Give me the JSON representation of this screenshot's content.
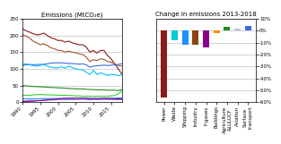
{
  "chart_data": [
    {
      "type": "line",
      "title": "Emissions (MtCO₂e)",
      "x": [
        1990,
        1991,
        1992,
        1993,
        1994,
        1995,
        1996,
        1997,
        1998,
        1999,
        2000,
        2001,
        2002,
        2003,
        2004,
        2005,
        2006,
        2007,
        2008,
        2009,
        2010,
        2011,
        2012,
        2013,
        2014,
        2015,
        2016,
        2017,
        2018
      ],
      "series": [
        {
          "color": "#8B1A1A",
          "values": [
            220,
            214,
            210,
            205,
            202,
            203,
            207,
            200,
            193,
            190,
            185,
            185,
            180,
            183,
            178,
            175,
            172,
            172,
            165,
            150,
            155,
            147,
            155,
            155,
            140,
            130,
            115,
            100,
            85
          ]
        },
        {
          "color": "#A0522D",
          "values": [
            203,
            198,
            192,
            183,
            178,
            172,
            175,
            170,
            163,
            160,
            155,
            155,
            150,
            153,
            150,
            148,
            145,
            143,
            135,
            122,
            127,
            125,
            130,
            128,
            122,
            120,
            115,
            110,
            108
          ]
        },
        {
          "color": "#4169E1",
          "values": [
            110,
            112,
            113,
            112,
            113,
            113,
            113,
            115,
            117,
            118,
            118,
            118,
            117,
            116,
            116,
            115,
            114,
            115,
            112,
            105,
            108,
            109,
            110,
            111,
            110,
            111,
            112,
            113,
            115
          ]
        },
        {
          "color": "#00BFFF",
          "values": [
            113,
            115,
            112,
            110,
            108,
            110,
            114,
            108,
            105,
            103,
            103,
            106,
            102,
            108,
            104,
            100,
            98,
            97,
            90,
            83,
            95,
            83,
            88,
            85,
            80,
            83,
            82,
            80,
            82
          ]
        },
        {
          "color": "#228B22",
          "values": [
            50,
            49,
            48,
            47,
            47,
            46,
            46,
            45,
            44,
            44,
            43,
            43,
            42,
            41,
            41,
            40,
            40,
            40,
            39,
            38,
            38,
            37,
            37,
            37,
            36,
            36,
            36,
            35,
            38
          ]
        },
        {
          "color": "#32CD32",
          "values": [
            20,
            21,
            21,
            22,
            23,
            23,
            23,
            22,
            22,
            22,
            21,
            21,
            21,
            20,
            20,
            19,
            19,
            18,
            18,
            18,
            18,
            18,
            18,
            18,
            18,
            19,
            20,
            25,
            33
          ]
        },
        {
          "color": "#1E90FF",
          "values": [
            10,
            10,
            10,
            10,
            10,
            11,
            11,
            11,
            11,
            11,
            11,
            11,
            11,
            11,
            11,
            12,
            12,
            12,
            12,
            11,
            11,
            11,
            11,
            12,
            12,
            12,
            12,
            13,
            13
          ]
        },
        {
          "color": "#9370DB",
          "values": [
            4,
            4,
            5,
            5,
            5,
            5,
            6,
            6,
            7,
            7,
            8,
            8,
            8,
            8,
            8,
            8,
            8,
            9,
            8,
            7,
            8,
            8,
            8,
            8,
            8,
            8,
            8,
            8,
            8
          ]
        },
        {
          "color": "#8B008B",
          "values": [
            2,
            2,
            3,
            3,
            4,
            5,
            6,
            7,
            8,
            9,
            10,
            11,
            12,
            12,
            12,
            12,
            12,
            12,
            12,
            11,
            11,
            11,
            11,
            12,
            11,
            11,
            10,
            10,
            10
          ]
        }
      ],
      "xlim": [
        1990,
        2018
      ],
      "xticks": [
        1990,
        1995,
        2000,
        2005,
        2010,
        2015
      ],
      "ylim": [
        0,
        250
      ],
      "yticks": [
        0,
        50,
        100,
        150,
        200,
        250
      ],
      "grid": true
    },
    {
      "type": "bar",
      "title": "Change in emissions 2013-2018",
      "categories": [
        "Power",
        "Waste",
        "Shipping",
        "Industry",
        "F-gases",
        "Buildings",
        "Agriculture\n&LULUCF",
        "Aviation",
        "Surface\ntransport"
      ],
      "values": [
        -56,
        -8,
        -12,
        -12,
        -14,
        -2,
        3,
        2,
        4
      ],
      "colors": [
        "#8B1A1A",
        "#00CED1",
        "#1E90FF",
        "#8B4513",
        "#8B008B",
        "#FF8C00",
        "#228B22",
        "#B0C4DE",
        "#4169E1"
      ],
      "ylim": [
        -60,
        10
      ],
      "yticks": [
        {
          "value": 10,
          "label": "10%"
        },
        {
          "value": 0,
          "label": "0%"
        },
        {
          "value": -10,
          "label": "-10%"
        },
        {
          "value": -20,
          "label": "-20%"
        },
        {
          "value": -30,
          "label": "-30%"
        },
        {
          "value": -40,
          "label": "-40%"
        },
        {
          "value": -50,
          "label": "-50%"
        },
        {
          "value": -60,
          "label": "-60%"
        }
      ],
      "grid": true
    }
  ]
}
